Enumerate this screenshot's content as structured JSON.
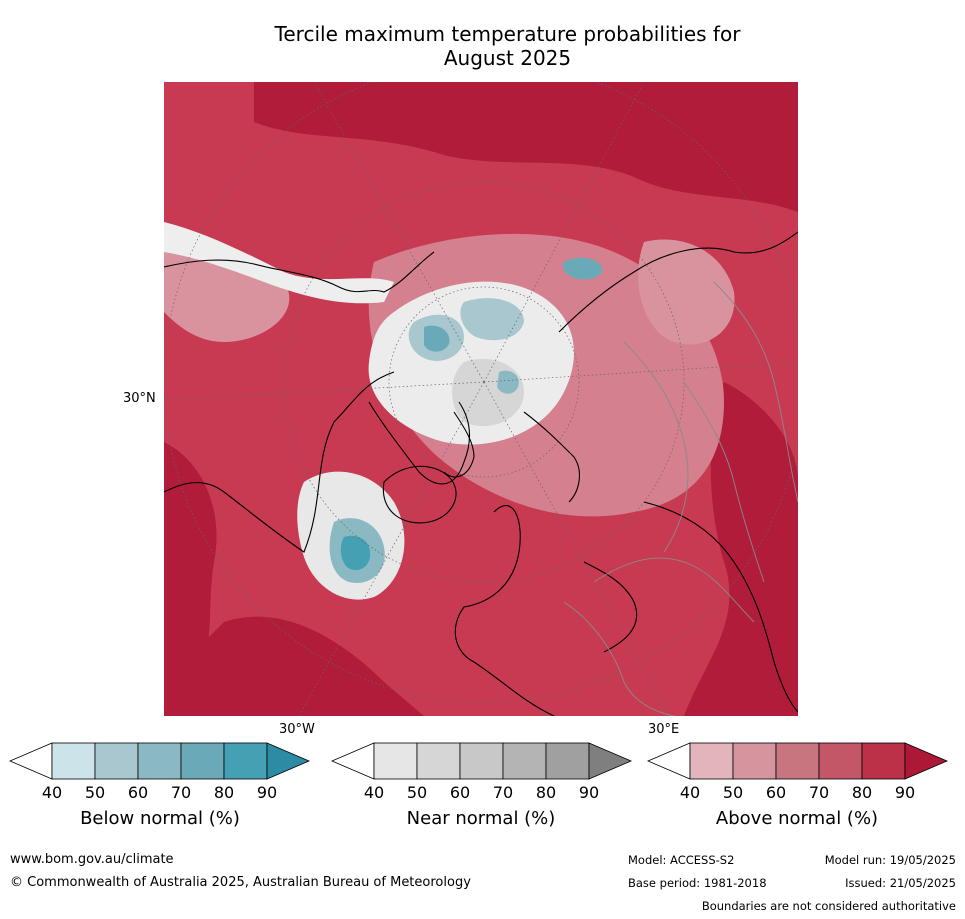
{
  "title_line1": "Tercile maximum temperature probabilities for",
  "title_line2": "August 2025",
  "map": {
    "lat_label": "30°N",
    "lon_label_left": "30°W",
    "lon_label_right": "30°E"
  },
  "colorbars": [
    {
      "label": "Below normal (%)",
      "ticks": [
        "40",
        "50",
        "60",
        "70",
        "80",
        "90"
      ],
      "colors": [
        "#ffffff",
        "#cce3ea",
        "#a8c7ce",
        "#8bb9c3",
        "#6aaab8",
        "#45a0b3",
        "#2b8ca4"
      ]
    },
    {
      "label": "Near normal (%)",
      "ticks": [
        "40",
        "50",
        "60",
        "70",
        "80",
        "90"
      ],
      "colors": [
        "#ffffff",
        "#e6e6e6",
        "#d6d6d6",
        "#c8c8c8",
        "#b4b4b4",
        "#a0a0a0",
        "#7f7f7f"
      ]
    },
    {
      "label": "Above normal (%)",
      "ticks": [
        "40",
        "50",
        "60",
        "70",
        "80",
        "90"
      ],
      "colors": [
        "#ffffff",
        "#e2b4bb",
        "#d4959f",
        "#c97580",
        "#c45767",
        "#bb3148",
        "#ad1837"
      ]
    }
  ],
  "footer": {
    "website": "www.bom.gov.au/climate",
    "copyright": "© Commonwealth of Australia 2025, Australian Bureau of Meteorology",
    "model": "Model: ACCESS-S2",
    "model_run": "Model run: 19/05/2025",
    "base_period": "Base period: 1981-2018",
    "issued": "Issued: 21/05/2025",
    "disclaimer": "Boundaries are not considered authoritative"
  }
}
